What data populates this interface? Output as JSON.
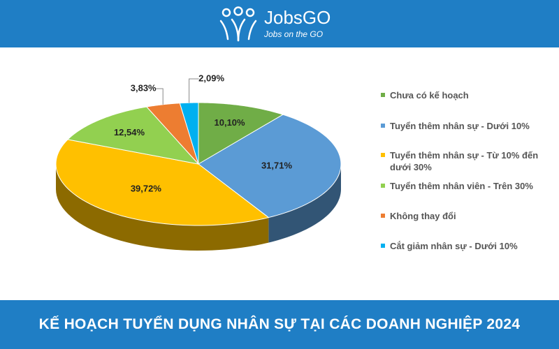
{
  "header": {
    "brand": "JobsGO",
    "tagline": "Jobs on the GO"
  },
  "chart_data": {
    "type": "pie3d",
    "title": "KẾ HOẠCH TUYỂN DỤNG NHÂN SỰ TẠI CÁC DOANH NGHIỆP 2024",
    "categories": [
      "Chưa có kế hoạch",
      "Tuyển thêm nhân sự - Dưới 10%",
      "Tuyển thêm nhân sự - Từ 10% đến dưới 30%",
      "Tuyển thêm nhân viên - Trên 30%",
      "Không thay đổi",
      "Cắt giảm nhân sự - Dưới 10%"
    ],
    "values": [
      10.1,
      31.71,
      39.72,
      12.54,
      3.83,
      2.09
    ],
    "value_labels": [
      "10,10%",
      "31,71%",
      "39,72%",
      "12,54%",
      "3,83%",
      "2,09%"
    ],
    "colors": [
      "#70ad47",
      "#5b9bd5",
      "#ffc000",
      "#92d050",
      "#ed7d31",
      "#00b0f0"
    ],
    "legend": "right"
  }
}
